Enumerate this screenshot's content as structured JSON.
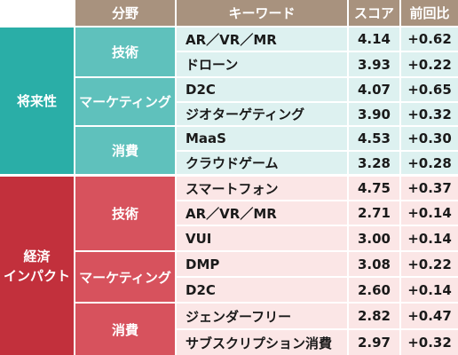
{
  "header": {
    "field": "分野",
    "keyword": "キーワード",
    "score": "スコア",
    "change": "前回比"
  },
  "groups": [
    {
      "name": "将来性",
      "theme": "teal",
      "subgroups": [
        {
          "name": "技術",
          "rows": [
            {
              "keyword": "AR／VR／MR",
              "score": "4.14",
              "change": "+0.62"
            },
            {
              "keyword": "ドローン",
              "score": "3.93",
              "change": "+0.22"
            }
          ]
        },
        {
          "name": "マーケティング",
          "rows": [
            {
              "keyword": "D2C",
              "score": "4.07",
              "change": "+0.65"
            },
            {
              "keyword": "ジオターゲティング",
              "score": "3.90",
              "change": "+0.32"
            }
          ]
        },
        {
          "name": "消費",
          "rows": [
            {
              "keyword": "MaaS",
              "score": "4.53",
              "change": "+0.30"
            },
            {
              "keyword": "クラウドゲーム",
              "score": "3.28",
              "change": "+0.28"
            }
          ]
        }
      ]
    },
    {
      "name_lines": [
        "経済",
        "インパクト"
      ],
      "theme": "red",
      "subgroups": [
        {
          "name": "技術",
          "rows": [
            {
              "keyword": "スマートフォン",
              "score": "4.75",
              "change": "+0.37"
            },
            {
              "keyword": "AR／VR／MR",
              "score": "2.71",
              "change": "+0.14"
            },
            {
              "keyword": "VUI",
              "score": "3.00",
              "change": "+0.14"
            }
          ]
        },
        {
          "name": "マーケティング",
          "rows": [
            {
              "keyword": "DMP",
              "score": "3.08",
              "change": "+0.22"
            },
            {
              "keyword": "D2C",
              "score": "2.60",
              "change": "+0.14"
            }
          ]
        },
        {
          "name": "消費",
          "rows": [
            {
              "keyword": "ジェンダーフリー",
              "score": "2.82",
              "change": "+0.47"
            },
            {
              "keyword": "サブスクリプション消費",
              "score": "2.97",
              "change": "+0.32"
            }
          ]
        }
      ]
    }
  ],
  "colors": {
    "header_bg": "#a8927e",
    "teal_dark": "#2aaea7",
    "teal_mid": "#5fc1bc",
    "teal_light": "#ddf1f0",
    "red_dark": "#c2303c",
    "red_mid": "#d7525d",
    "red_light": "#fbe6e6"
  }
}
